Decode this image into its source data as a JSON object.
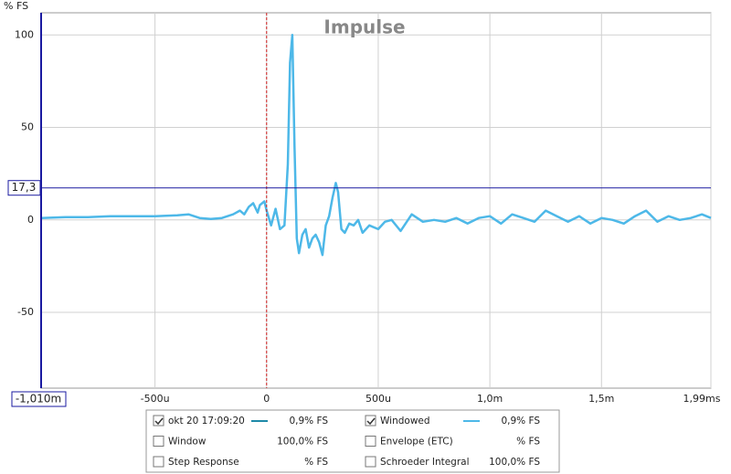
{
  "chart_data": {
    "type": "line",
    "title": "Impulse",
    "y_axis_label": "% FS",
    "xlim": [
      -1.01,
      1.99
    ],
    "ylim": [
      -91,
      112
    ],
    "xticks": [
      {
        "value": -0.5,
        "label": "-500u"
      },
      0,
      {
        "value": 0.5,
        "label": "500u"
      },
      {
        "value": 1,
        "label": "1,0m"
      },
      {
        "value": 1.5,
        "label": "1,5m"
      },
      {
        "value": 1.99,
        "label": "1,99ms"
      }
    ],
    "yticks": [
      100,
      50,
      0,
      -50
    ],
    "grid": true,
    "reference_x": 0,
    "cursor_x": {
      "value": -1.01,
      "label": "-1,010m"
    },
    "cursor_y": {
      "value": 17.3,
      "label": "17,3"
    },
    "x": [
      -1.01,
      -0.9,
      -0.8,
      -0.7,
      -0.6,
      -0.5,
      -0.4,
      -0.35,
      -0.3,
      -0.25,
      -0.2,
      -0.15,
      -0.12,
      -0.1,
      -0.08,
      -0.06,
      -0.04,
      -0.03,
      -0.01,
      0,
      0.02,
      0.04,
      0.06,
      0.08,
      0.095,
      0.105,
      0.115,
      0.125,
      0.135,
      0.145,
      0.16,
      0.175,
      0.19,
      0.205,
      0.22,
      0.235,
      0.25,
      0.265,
      0.28,
      0.295,
      0.31,
      0.32,
      0.335,
      0.35,
      0.37,
      0.39,
      0.41,
      0.43,
      0.46,
      0.5,
      0.53,
      0.56,
      0.6,
      0.65,
      0.7,
      0.75,
      0.8,
      0.85,
      0.9,
      0.95,
      1.0,
      1.05,
      1.1,
      1.15,
      1.2,
      1.25,
      1.3,
      1.35,
      1.4,
      1.45,
      1.5,
      1.55,
      1.6,
      1.65,
      1.7,
      1.75,
      1.8,
      1.85,
      1.9,
      1.95,
      1.99
    ],
    "series": [
      {
        "name": "Windowed",
        "color": "#4db8e8",
        "values": [
          1,
          1.5,
          1.5,
          2,
          2,
          2,
          2.5,
          3,
          1,
          0.5,
          1,
          3,
          5,
          3,
          7,
          9,
          4,
          8,
          10,
          5,
          -3,
          6,
          -5,
          -3,
          30,
          85,
          100,
          40,
          -10,
          -18,
          -8,
          -5,
          -15,
          -10,
          -8,
          -12,
          -19,
          -3,
          2,
          12,
          20,
          15,
          -5,
          -7,
          -2,
          -3,
          0,
          -7,
          -3,
          -5,
          -1,
          0,
          -6,
          3,
          -1,
          0,
          -1,
          1,
          -2,
          1,
          2,
          -2,
          3,
          1,
          -1,
          5,
          2,
          -1,
          2,
          -2,
          1,
          0,
          -2,
          2,
          5,
          -1,
          2,
          0,
          1,
          3,
          1
        ]
      }
    ],
    "legend": [
      {
        "label": "okt 20 17:09:20",
        "value": "0,9% FS",
        "checked": true,
        "color": "#1e8aa8",
        "text_color": "#1a3050"
      },
      {
        "label": "Windowed",
        "value": "0,9% FS",
        "checked": true,
        "color": "#4db8e8",
        "text_color": "#4db8e8"
      },
      {
        "label": "Window",
        "value": "100,0% FS",
        "checked": false,
        "color": null,
        "text_color": "#1a2aa0"
      },
      {
        "label": "Envelope (ETC)",
        "value": "% FS",
        "checked": false,
        "color": null,
        "text_color": "#1a3050"
      },
      {
        "label": "Step Response",
        "value": "% FS",
        "checked": false,
        "color": null,
        "text_color": "#1a3050"
      },
      {
        "label": "Schroeder Integral",
        "value": "100,0% FS",
        "checked": false,
        "color": null,
        "text_color": "#1a3050"
      }
    ]
  }
}
